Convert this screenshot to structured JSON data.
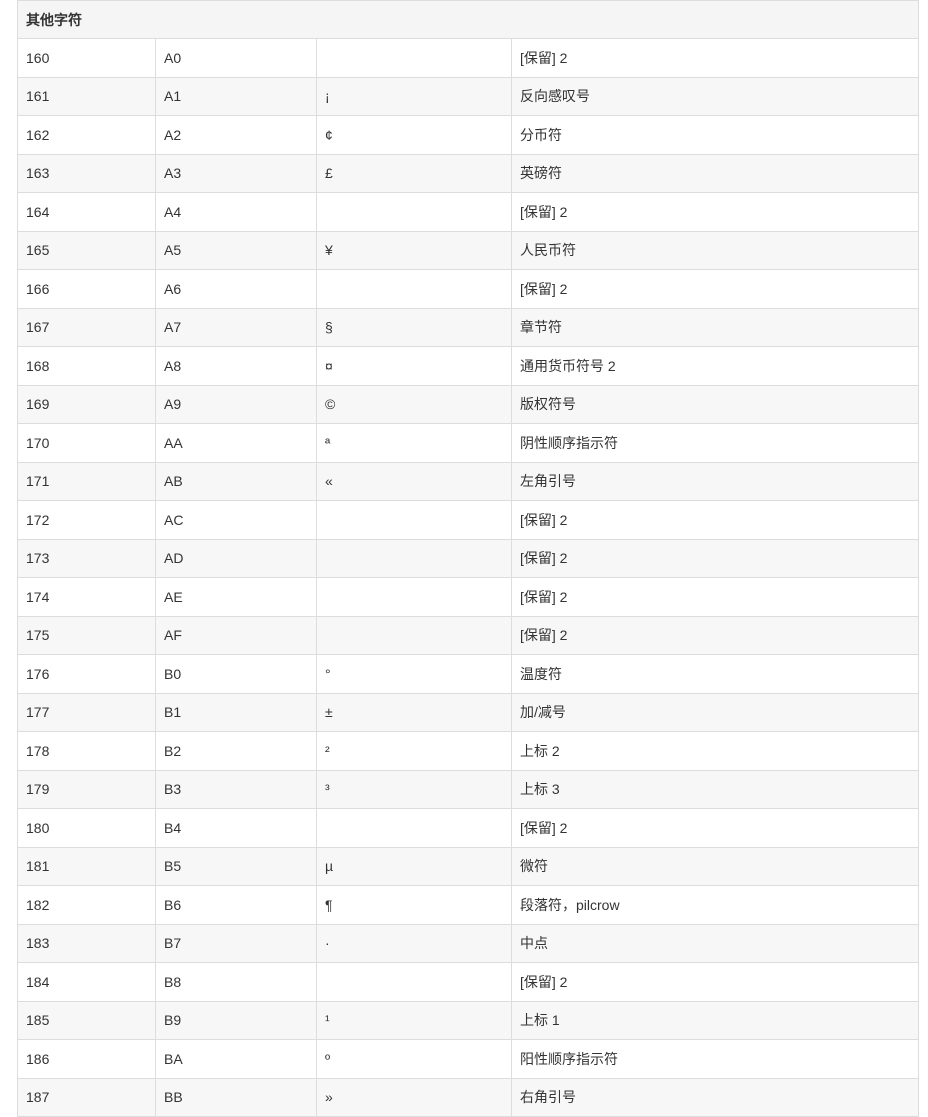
{
  "table": {
    "header": "其他字符",
    "rows": [
      [
        "160",
        "A0",
        "",
        "[保留] 2"
      ],
      [
        "161",
        "A1",
        "¡",
        "反向感叹号"
      ],
      [
        "162",
        "A2",
        "¢",
        "分币符"
      ],
      [
        "163",
        "A3",
        "£",
        "英磅符"
      ],
      [
        "164",
        "A4",
        "",
        "[保留] 2"
      ],
      [
        "165",
        "A5",
        "¥",
        "人民币符"
      ],
      [
        "166",
        "A6",
        "",
        "[保留] 2"
      ],
      [
        "167",
        "A7",
        "§",
        "章节符"
      ],
      [
        "168",
        "A8",
        "¤",
        "通用货币符号 2"
      ],
      [
        "169",
        "A9",
        "©",
        "版权符号"
      ],
      [
        "170",
        "AA",
        "ª",
        "阴性顺序指示符"
      ],
      [
        "171",
        "AB",
        "«",
        "左角引号"
      ],
      [
        "172",
        "AC",
        "",
        "[保留] 2"
      ],
      [
        "173",
        "AD",
        "",
        "[保留] 2"
      ],
      [
        "174",
        "AE",
        "",
        "[保留] 2"
      ],
      [
        "175",
        "AF",
        "",
        "[保留] 2"
      ],
      [
        "176",
        "B0",
        "°",
        "温度符"
      ],
      [
        "177",
        "B1",
        "±",
        "加/减号"
      ],
      [
        "178",
        "B2",
        "²",
        "上标 2"
      ],
      [
        "179",
        "B3",
        "³",
        "上标 3"
      ],
      [
        "180",
        "B4",
        "",
        "[保留] 2"
      ],
      [
        "181",
        "B5",
        "µ",
        "微符"
      ],
      [
        "182",
        "B6",
        "¶",
        "段落符，pilcrow"
      ],
      [
        "183",
        "B7",
        "·",
        "中点"
      ],
      [
        "184",
        "B8",
        "",
        "[保留] 2"
      ],
      [
        "185",
        "B9",
        "¹",
        "上标 1"
      ],
      [
        "186",
        "BA",
        "º",
        "阳性顺序指示符"
      ],
      [
        "187",
        "BB",
        "»",
        "右角引号"
      ]
    ]
  }
}
